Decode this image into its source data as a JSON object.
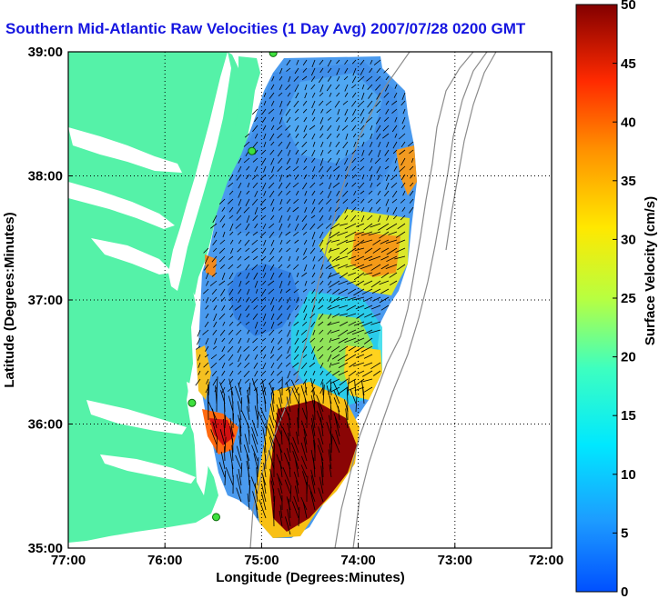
{
  "map": {
    "title": "Southern Mid-Atlantic Raw Velocities (1 Day Avg) 2007/07/28 0200 GMT",
    "xlabel": "Longitude (Degrees:Minutes)",
    "ylabel": "Latitude (Degrees:Minutes)",
    "x_ticks": [
      "77:00",
      "76:00",
      "75:00",
      "74:00",
      "73:00",
      "72:00"
    ],
    "y_ticks": [
      "39:00",
      "38:00",
      "37:00",
      "36:00",
      "35:00"
    ],
    "lon_range": [
      -77,
      -72
    ],
    "lat_range": [
      35,
      39
    ],
    "land_color": "#55f2a8",
    "vector_color": "#000000"
  },
  "colorbar": {
    "label": "Surface Velocity (cm/s)",
    "ticks": [
      "50",
      "45",
      "40",
      "35",
      "30",
      "25",
      "20",
      "15",
      "10",
      "5",
      "0"
    ],
    "range": [
      0,
      50
    ],
    "colormap": "jet"
  },
  "stations": [
    {
      "lon": -74.88,
      "lat": 38.99
    },
    {
      "lon": -75.1,
      "lat": 38.2
    },
    {
      "lon": -75.72,
      "lat": 36.17
    },
    {
      "lon": -75.47,
      "lat": 35.25
    }
  ]
}
